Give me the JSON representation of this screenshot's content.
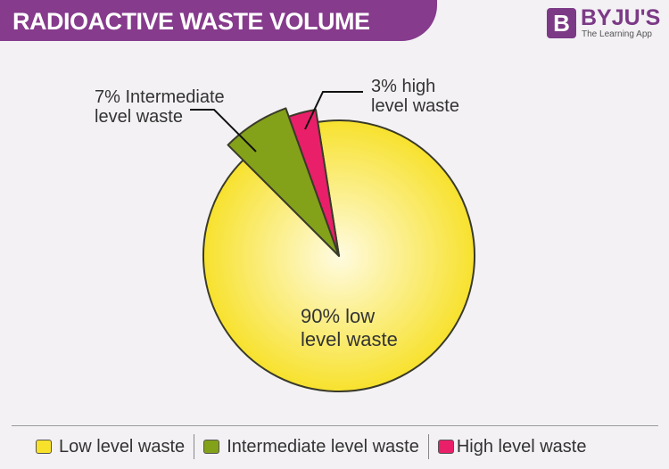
{
  "header": {
    "title": "RADIOACTIVE WASTE VOLUME",
    "logo_mark": "B",
    "logo_name": "BYJU'S",
    "logo_tagline": "The Learning App"
  },
  "chart_data": {
    "type": "pie",
    "title": "RADIOACTIVE WASTE VOLUME",
    "categories": [
      "Low level waste",
      "Intermediate level waste",
      "High level waste"
    ],
    "values": [
      90,
      7,
      3
    ],
    "unit": "%",
    "colors": [
      "#f7e12a",
      "#84a11a",
      "#ea1f69"
    ],
    "data_labels": [
      {
        "line1": "90% low",
        "line2": "level waste"
      },
      {
        "line1": "7% Intermediate",
        "line2": "level waste"
      },
      {
        "line1": "3% high",
        "line2": "level waste"
      }
    ],
    "legend": {
      "position": "bottom",
      "items": [
        "Low level waste",
        "Intermediate level waste",
        "High level waste"
      ]
    }
  }
}
